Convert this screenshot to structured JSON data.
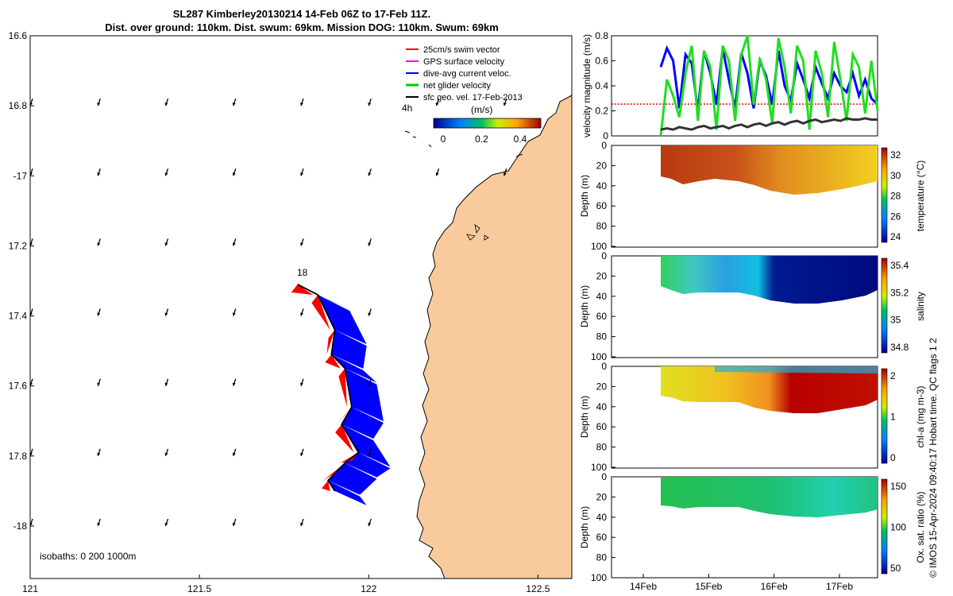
{
  "chart_data": {
    "title_line1": "SL287 Kimberley20130214 14-Feb 06Z to 17-Feb 11Z.",
    "title_line2": "Dist. over ground: 110km. Dist. swum: 69km. Mission DOG: 110km. Swum: 69km",
    "credit": "© IMOS 15-Apr-2024 09:40:17 Hobart time. QC flags 1  2",
    "map": {
      "type": "map",
      "xlim": [
        121,
        122.6
      ],
      "ylim": [
        -18.15,
        -16.6
      ],
      "xticks": [
        121,
        121.5,
        122,
        122.5
      ],
      "xtick_labels": [
        "121",
        "121.5",
        "122",
        "122.5"
      ],
      "yticks": [
        -16.6,
        -16.8,
        -17,
        -17.2,
        -17.4,
        -17.6,
        -17.8,
        -18
      ],
      "ytick_labels": [
        "16.6",
        "16.8",
        "-17",
        "17.2",
        "17.4",
        "17.6",
        "17.8",
        "-18"
      ],
      "legend": [
        {
          "label": "25cm/s swim vector",
          "color": "#ff0000"
        },
        {
          "label": "GPS surface velocity",
          "color": "#ff00ff"
        },
        {
          "label": "dive-avg current veloc.",
          "color": "#0000ff"
        },
        {
          "label": "net glider velocity",
          "color": "#00cc00"
        },
        {
          "label": "sfc geo. vel. 17-Feb-2013",
          "color": "#000000"
        }
      ],
      "legend_note": "4h",
      "colorbar_label": "(m/s)",
      "colorbar_ticks": [
        "0",
        "0.2",
        "0.4"
      ],
      "track_label": "18",
      "isobaths_label": "isobaths: 0   200  1000m",
      "land_color": "#f9cb9c",
      "track_points": [
        [
          121.79,
          -17.31
        ],
        [
          121.85,
          -17.34
        ],
        [
          121.9,
          -17.44
        ],
        [
          121.89,
          -17.51
        ],
        [
          121.93,
          -17.55
        ],
        [
          121.95,
          -17.66
        ],
        [
          121.92,
          -17.71
        ],
        [
          121.97,
          -17.79
        ],
        [
          121.93,
          -17.82
        ],
        [
          121.88,
          -17.87
        ],
        [
          121.9,
          -17.9
        ]
      ]
    },
    "velocity_panel": {
      "type": "line",
      "ylabel": "velocity magnitude (m/s)",
      "ylim": [
        0,
        0.8
      ],
      "yticks": [
        "0",
        "0.2",
        "0.4",
        "0.6",
        "0.8"
      ],
      "swim_reference": 0.25,
      "series": [
        {
          "name": "dive-avg current",
          "color": "#0000ff",
          "values": [
            0.55,
            0.7,
            0.6,
            0.22,
            0.65,
            0.58,
            0.2,
            0.68,
            0.5,
            0.25,
            0.7,
            0.45,
            0.22,
            0.66,
            0.5,
            0.22,
            0.6,
            0.48,
            0.25,
            0.68,
            0.4,
            0.28,
            0.58,
            0.45,
            0.3,
            0.55,
            0.42,
            0.3,
            0.5,
            0.4,
            0.35,
            0.5,
            0.32,
            0.45,
            0.3,
            0.25
          ]
        },
        {
          "name": "net glider",
          "color": "#22dd22",
          "values": [
            0.0,
            0.45,
            0.32,
            0.15,
            0.5,
            0.72,
            0.12,
            0.68,
            0.55,
            0.05,
            0.72,
            0.6,
            0.12,
            0.65,
            0.8,
            0.25,
            0.62,
            0.45,
            0.1,
            0.78,
            0.55,
            0.18,
            0.72,
            0.6,
            0.05,
            0.68,
            0.5,
            0.15,
            0.75,
            0.45,
            0.12,
            0.65,
            0.55,
            0.18,
            0.6,
            0.2
          ]
        },
        {
          "name": "sfc geo.",
          "color": "#333333",
          "values": [
            0.05,
            0.06,
            0.05,
            0.07,
            0.06,
            0.05,
            0.07,
            0.08,
            0.06,
            0.07,
            0.08,
            0.06,
            0.08,
            0.09,
            0.07,
            0.09,
            0.1,
            0.08,
            0.1,
            0.11,
            0.09,
            0.11,
            0.12,
            0.1,
            0.12,
            0.13,
            0.11,
            0.12,
            0.13,
            0.12,
            0.14,
            0.13,
            0.13,
            0.14,
            0.13,
            0.13
          ]
        }
      ]
    },
    "time_axis": {
      "ticks": [
        "14Feb",
        "15Feb",
        "16Feb",
        "17Feb"
      ]
    },
    "depth_panels": [
      {
        "name": "temperature",
        "clabel": "temperature (°C)",
        "ticks": [
          "24",
          "26",
          "28",
          "30",
          "32"
        ],
        "depth_ticks": [
          "0",
          "20",
          "40",
          "60",
          "80",
          "100"
        ],
        "ylabel": "Depth (m)"
      },
      {
        "name": "salinity",
        "clabel": "salinity",
        "ticks": [
          "34.8",
          "35",
          "35.2",
          "35.4"
        ],
        "depth_ticks": [
          "0",
          "20",
          "40",
          "60",
          "80",
          "100"
        ],
        "ylabel": "Depth (m)"
      },
      {
        "name": "chl-a",
        "clabel": "chl-a (mg m-3)",
        "ticks": [
          "0",
          "1",
          "2"
        ],
        "depth_ticks": [
          "0",
          "20",
          "40",
          "60",
          "80",
          "100"
        ],
        "ylabel": "Depth (m)"
      },
      {
        "name": "oxygen",
        "clabel": "Ox. sat. ratio (%)",
        "ticks": [
          "50",
          "100",
          "150"
        ],
        "depth_ticks": [
          "0",
          "20",
          "40",
          "60",
          "80",
          "100"
        ],
        "ylabel": "Depth (m)"
      }
    ]
  }
}
